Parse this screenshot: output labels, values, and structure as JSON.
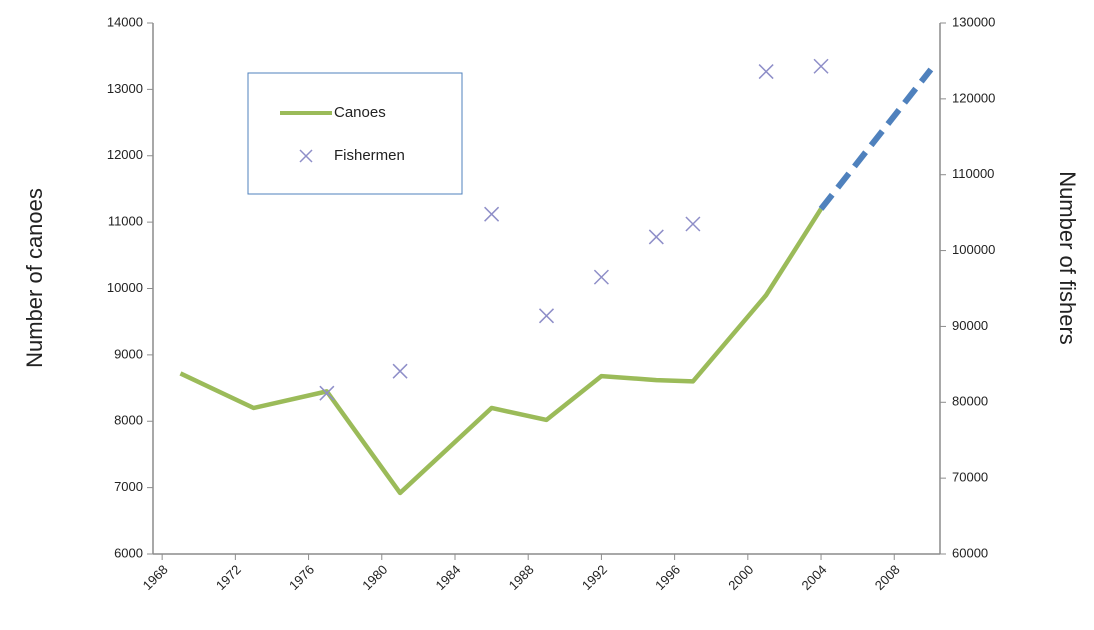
{
  "chart_data": {
    "type": "line",
    "x_label": null,
    "y_label": "Number of canoes",
    "y2_label": "Number of fishers",
    "xlim": [
      1967.5,
      2010.5
    ],
    "xticks": [
      1968,
      1972,
      1976,
      1980,
      1984,
      1988,
      1992,
      1996,
      2000,
      2004,
      2008
    ],
    "ylim": [
      6000,
      14000
    ],
    "yticks": [
      6000,
      7000,
      8000,
      9000,
      10000,
      11000,
      12000,
      13000,
      14000
    ],
    "y2lim": [
      60000,
      130000
    ],
    "y2ticks": [
      60000,
      70000,
      80000,
      90000,
      100000,
      110000,
      120000,
      130000
    ],
    "legend": "upper-left",
    "series": [
      {
        "name": "Canoes",
        "color": "#9bbb59",
        "style": "line",
        "x": [
          1969,
          1973,
          1977,
          1981,
          1986,
          1989,
          1992,
          1995,
          1997,
          2001,
          2004
        ],
        "values": [
          8720,
          8200,
          8450,
          6920,
          8200,
          8020,
          8680,
          8620,
          8600,
          9900,
          11200
        ]
      },
      {
        "name": "Fishermen",
        "color": "#8e8ec8",
        "style": "cross",
        "axis": "y2",
        "x": [
          1977,
          1981,
          1986,
          1989,
          1992,
          1995,
          1997,
          2001,
          2004
        ],
        "values": [
          81200,
          84100,
          104800,
          91400,
          96500,
          101800,
          103500,
          123600,
          124300
        ]
      },
      {
        "color": "#4f81bd",
        "style": "dashed",
        "x": [
          2004,
          2010
        ],
        "values": [
          11200,
          13300
        ]
      }
    ]
  }
}
